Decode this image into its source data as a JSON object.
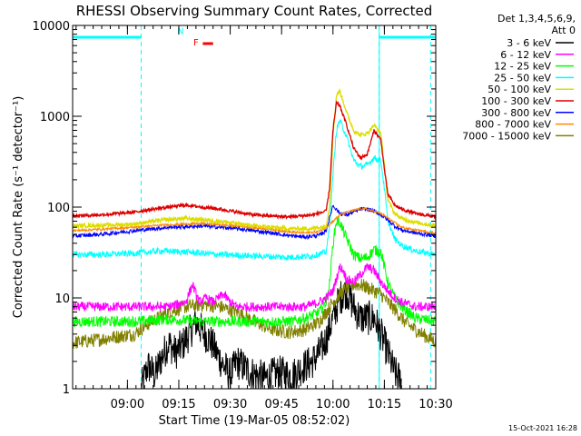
{
  "chart_data": {
    "type": "line",
    "title": "RHESSI Observing Summary Count Rates, Corrected",
    "xlabel": "Start Time (19-Mar-05 08:52:02)",
    "ylabel": "Corrected Count Rate (s⁻¹ detector⁻¹)",
    "yscale": "log",
    "xlim_minutes": [
      -8,
      98
    ],
    "ylim": [
      1,
      10000
    ],
    "x_ticks": [
      {
        "t": 8,
        "label": "09:00"
      },
      {
        "t": 23,
        "label": "09:15"
      },
      {
        "t": 38,
        "label": "09:30"
      },
      {
        "t": 53,
        "label": "09:45"
      },
      {
        "t": 68,
        "label": "10:00"
      },
      {
        "t": 83,
        "label": "10:15"
      },
      {
        "t": 98,
        "label": "10:30"
      }
    ],
    "y_ticks": [
      {
        "v": 1,
        "label": "1"
      },
      {
        "v": 10,
        "label": "10"
      },
      {
        "v": 100,
        "label": "100"
      },
      {
        "v": 1000,
        "label": "1000"
      },
      {
        "v": 10000,
        "label": "10000"
      }
    ],
    "legend_header": [
      "Det 1,3,4,5,6,9,",
      "Att 0"
    ],
    "annotations": [
      {
        "text": "N",
        "t": 23.5,
        "y": 8000,
        "color": "#00ffff"
      },
      {
        "text": "F",
        "t": 28.0,
        "y": 6000,
        "color": "#ff0000"
      }
    ],
    "night_bars": [
      [
        -8,
        12
      ],
      [
        81.5,
        98
      ]
    ],
    "night_dashes": [
      12,
      81.5
    ],
    "flare_bar": [
      30,
      33
    ],
    "series": [
      {
        "name": "3 - 6 keV",
        "color": "#000000",
        "t": [
          12,
          14,
          16,
          18,
          20,
          22,
          24,
          26,
          28,
          30,
          32,
          34,
          36,
          38,
          40,
          44,
          48,
          52,
          56,
          60,
          62,
          64,
          66,
          68,
          70,
          72,
          74,
          76,
          78,
          80,
          82,
          84,
          86,
          88
        ],
        "v": [
          1,
          1.8,
          1.4,
          2.2,
          3.2,
          2.5,
          3.0,
          4.0,
          5.5,
          4.2,
          3.5,
          2.5,
          1.8,
          1.4,
          2.0,
          1.5,
          1.3,
          1.5,
          1.4,
          1.8,
          2.0,
          2.5,
          3.5,
          6,
          10,
          12,
          8,
          6,
          6,
          6,
          4,
          2.5,
          1.5,
          1.2
        ]
      },
      {
        "name": "6 - 12 keV",
        "color": "#ff00ff",
        "t": [
          -8,
          0,
          5,
          10,
          15,
          20,
          25,
          27,
          29,
          31,
          33,
          36,
          38,
          40,
          44,
          50,
          56,
          60,
          64,
          66,
          68,
          70,
          71,
          72,
          74,
          76,
          78,
          80,
          82,
          84,
          86,
          88,
          92,
          98
        ],
        "v": [
          8,
          8,
          8,
          8,
          8,
          8,
          9,
          14,
          9,
          10,
          9,
          11,
          9,
          8,
          8,
          8,
          8,
          8,
          9,
          10,
          12,
          22,
          20,
          16,
          15,
          18,
          22,
          20,
          15,
          12,
          10,
          9,
          8,
          8
        ]
      },
      {
        "name": "12 - 25 keV",
        "color": "#00ff00",
        "t": [
          -8,
          0,
          10,
          20,
          30,
          40,
          50,
          56,
          60,
          64,
          66,
          67,
          68,
          69,
          70,
          71,
          72,
          74,
          76,
          78,
          80,
          82,
          83,
          84,
          86,
          88,
          92,
          98
        ],
        "v": [
          5.5,
          5.5,
          5.5,
          5.8,
          5.5,
          5.5,
          5.5,
          5.5,
          6,
          7,
          9,
          14,
          40,
          70,
          68,
          55,
          45,
          30,
          27,
          28,
          34,
          32,
          22,
          15,
          10,
          8,
          6,
          5.5
        ]
      },
      {
        "name": "25 - 50 keV",
        "color": "#00ffff",
        "t": [
          -8,
          0,
          10,
          18,
          25,
          35,
          45,
          55,
          62,
          66,
          67,
          68,
          69,
          70,
          72,
          74,
          76,
          78,
          80,
          82,
          83,
          84,
          86,
          88,
          92,
          98
        ],
        "v": [
          30,
          30,
          31,
          33,
          32,
          30,
          29,
          28,
          29,
          32,
          60,
          230,
          700,
          900,
          600,
          330,
          280,
          290,
          350,
          320,
          160,
          70,
          45,
          38,
          33,
          30
        ]
      },
      {
        "name": "50 - 100 keV",
        "color": "#dddd00",
        "t": [
          -8,
          0,
          10,
          18,
          25,
          35,
          45,
          55,
          62,
          66,
          67,
          68,
          69,
          70,
          72,
          74,
          76,
          78,
          80,
          82,
          83,
          84,
          86,
          88,
          92,
          98
        ],
        "v": [
          62,
          63,
          65,
          72,
          75,
          70,
          62,
          58,
          58,
          62,
          100,
          600,
          1700,
          1900,
          1100,
          700,
          620,
          650,
          800,
          650,
          280,
          120,
          85,
          75,
          68,
          62
        ]
      },
      {
        "name": "100 - 300 keV",
        "color": "#dd0000",
        "t": [
          -8,
          0,
          10,
          18,
          25,
          30,
          35,
          45,
          55,
          62,
          66,
          67,
          68,
          69,
          70,
          72,
          74,
          76,
          78,
          80,
          82,
          83,
          84,
          86,
          88,
          92,
          98
        ],
        "v": [
          80,
          82,
          88,
          98,
          105,
          100,
          95,
          82,
          78,
          82,
          90,
          160,
          700,
          1400,
          1300,
          800,
          450,
          350,
          380,
          700,
          550,
          260,
          140,
          105,
          95,
          85,
          78
        ]
      },
      {
        "name": "300 - 800 keV",
        "color": "#0000ff",
        "t": [
          -8,
          0,
          10,
          20,
          30,
          40,
          50,
          56,
          60,
          64,
          66,
          68,
          70,
          72,
          74,
          76,
          78,
          80,
          82,
          84,
          86,
          88,
          92,
          98
        ],
        "v": [
          48,
          50,
          55,
          60,
          62,
          58,
          52,
          48,
          47,
          49,
          55,
          105,
          85,
          82,
          88,
          95,
          95,
          90,
          82,
          72,
          62,
          56,
          52,
          48
        ]
      },
      {
        "name": "800 - 7000 keV",
        "color": "#ff8800",
        "t": [
          -8,
          0,
          10,
          20,
          30,
          40,
          50,
          56,
          60,
          64,
          66,
          68,
          70,
          72,
          74,
          76,
          78,
          80,
          82,
          84,
          86,
          88,
          92,
          98
        ],
        "v": [
          55,
          57,
          60,
          64,
          66,
          62,
          57,
          53,
          52,
          54,
          60,
          70,
          82,
          88,
          92,
          96,
          95,
          90,
          85,
          76,
          67,
          60,
          56,
          52
        ]
      },
      {
        "name": "7000 - 15000 keV",
        "color": "#808000",
        "t": [
          -8,
          0,
          10,
          15,
          20,
          25,
          30,
          35,
          40,
          45,
          50,
          55,
          60,
          64,
          66,
          68,
          70,
          72,
          74,
          76,
          78,
          80,
          82,
          84,
          86,
          88,
          90,
          92,
          95,
          98
        ],
        "v": [
          3.2,
          3.5,
          4.0,
          5.5,
          7.0,
          8.0,
          8.5,
          8.0,
          7.0,
          5.5,
          4.5,
          4.2,
          4.5,
          5.5,
          7.0,
          9.0,
          11,
          13,
          14,
          14,
          13,
          12,
          11,
          9,
          7.5,
          6,
          5,
          4.5,
          3.8,
          3.3
        ]
      }
    ]
  },
  "footer": {
    "timestamp": "15-Oct-2021 16:28"
  }
}
